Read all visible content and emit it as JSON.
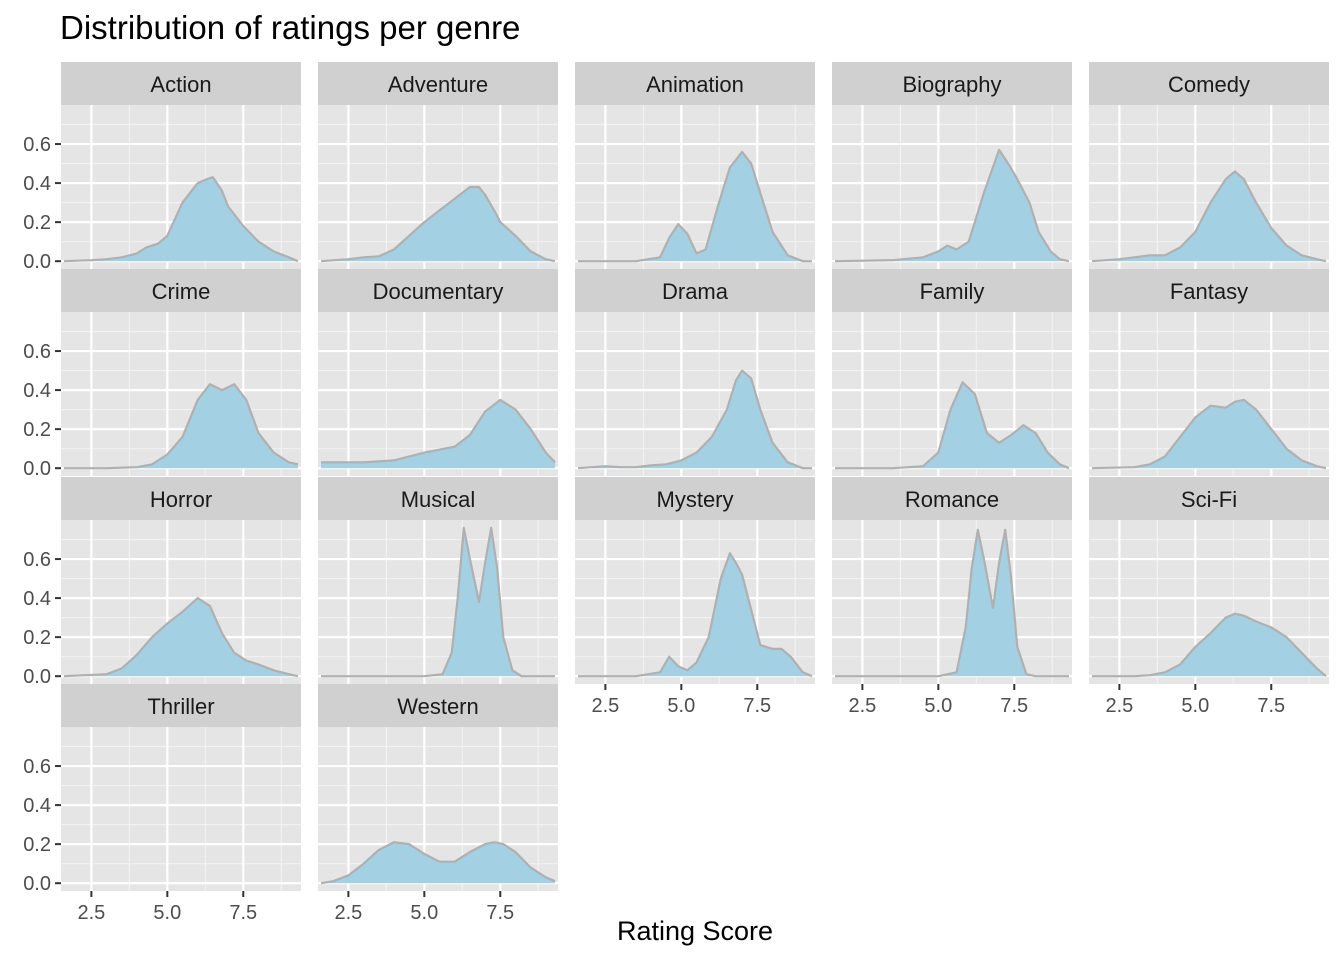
{
  "chart_data": {
    "type": "area",
    "title": "Distribution of ratings per genre",
    "xlabel": "Rating Score",
    "ylabel": "",
    "xlim": [
      1.5,
      9.4
    ],
    "ylim": [
      -0.04,
      0.8
    ],
    "x_ticks": [
      2.5,
      5.0,
      7.5
    ],
    "x_tick_labels": [
      "2.5",
      "5.0",
      "7.5"
    ],
    "y_ticks": [
      0.0,
      0.2,
      0.4,
      0.6
    ],
    "y_tick_labels": [
      "0.0",
      "0.2",
      "0.4",
      "0.6"
    ],
    "grid": true,
    "fill_color": "#a3d1e3",
    "line_color": "#b0b0b0",
    "panel_background": "#e5e5e5",
    "strip_background": "#d0d0d0",
    "facets": [
      {
        "name": "Action",
        "x": [
          1.6,
          2.5,
          3.0,
          3.5,
          4.0,
          4.3,
          4.7,
          5.0,
          5.5,
          6.0,
          6.3,
          6.5,
          6.8,
          7.0,
          7.5,
          8.0,
          8.5,
          9.0,
          9.3
        ],
        "y": [
          0.0,
          0.005,
          0.01,
          0.02,
          0.04,
          0.07,
          0.09,
          0.13,
          0.3,
          0.4,
          0.42,
          0.43,
          0.36,
          0.28,
          0.18,
          0.1,
          0.05,
          0.02,
          0.0
        ]
      },
      {
        "name": "Adventure",
        "x": [
          1.6,
          2.5,
          3.0,
          3.5,
          4.0,
          4.5,
          5.0,
          5.5,
          6.0,
          6.5,
          6.8,
          7.0,
          7.3,
          7.5,
          8.0,
          8.5,
          9.0,
          9.3
        ],
        "y": [
          0.0,
          0.01,
          0.02,
          0.025,
          0.06,
          0.13,
          0.2,
          0.26,
          0.32,
          0.38,
          0.38,
          0.34,
          0.26,
          0.2,
          0.13,
          0.05,
          0.01,
          0.0
        ]
      },
      {
        "name": "Animation",
        "x": [
          1.6,
          3.5,
          4.3,
          4.6,
          4.9,
          5.2,
          5.5,
          5.8,
          6.2,
          6.6,
          7.0,
          7.3,
          7.6,
          8.0,
          8.5,
          9.0,
          9.3
        ],
        "y": [
          0.0,
          0.0,
          0.02,
          0.12,
          0.19,
          0.14,
          0.04,
          0.06,
          0.28,
          0.48,
          0.56,
          0.5,
          0.35,
          0.15,
          0.03,
          0.0,
          0.0
        ]
      },
      {
        "name": "Biography",
        "x": [
          1.6,
          3.5,
          4.5,
          5.0,
          5.3,
          5.6,
          6.0,
          6.5,
          7.0,
          7.3,
          7.6,
          8.0,
          8.3,
          8.7,
          9.0,
          9.3
        ],
        "y": [
          0.0,
          0.005,
          0.02,
          0.05,
          0.08,
          0.06,
          0.1,
          0.35,
          0.57,
          0.5,
          0.42,
          0.3,
          0.15,
          0.05,
          0.01,
          0.0
        ]
      },
      {
        "name": "Comedy",
        "x": [
          1.6,
          2.5,
          3.0,
          3.5,
          4.0,
          4.5,
          5.0,
          5.5,
          6.0,
          6.3,
          6.6,
          7.0,
          7.5,
          8.0,
          8.5,
          9.0,
          9.3
        ],
        "y": [
          0.0,
          0.01,
          0.02,
          0.03,
          0.03,
          0.07,
          0.15,
          0.3,
          0.42,
          0.46,
          0.42,
          0.3,
          0.17,
          0.08,
          0.03,
          0.01,
          0.0
        ]
      },
      {
        "name": "Crime",
        "x": [
          1.6,
          3.0,
          4.0,
          4.5,
          5.0,
          5.5,
          6.0,
          6.4,
          6.8,
          7.2,
          7.6,
          8.0,
          8.5,
          9.0,
          9.3
        ],
        "y": [
          0.0,
          0.0,
          0.005,
          0.02,
          0.07,
          0.16,
          0.35,
          0.43,
          0.4,
          0.43,
          0.35,
          0.18,
          0.08,
          0.03,
          0.02
        ]
      },
      {
        "name": "Documentary",
        "x": [
          1.6,
          2.0,
          3.0,
          4.0,
          5.0,
          6.0,
          6.5,
          7.0,
          7.5,
          8.0,
          8.5,
          9.0,
          9.3
        ],
        "y": [
          0.03,
          0.03,
          0.03,
          0.04,
          0.08,
          0.11,
          0.17,
          0.29,
          0.35,
          0.3,
          0.2,
          0.08,
          0.03
        ]
      },
      {
        "name": "Drama",
        "x": [
          1.6,
          2.5,
          3.0,
          3.5,
          4.0,
          4.5,
          5.0,
          5.5,
          6.0,
          6.5,
          6.8,
          7.0,
          7.3,
          7.6,
          8.0,
          8.5,
          9.0,
          9.3
        ],
        "y": [
          0.0,
          0.01,
          0.005,
          0.005,
          0.015,
          0.02,
          0.04,
          0.08,
          0.16,
          0.3,
          0.45,
          0.5,
          0.46,
          0.3,
          0.13,
          0.03,
          0.0,
          0.0
        ]
      },
      {
        "name": "Family",
        "x": [
          1.6,
          3.5,
          4.5,
          5.0,
          5.4,
          5.8,
          6.2,
          6.6,
          7.0,
          7.4,
          7.8,
          8.2,
          8.6,
          9.0,
          9.3
        ],
        "y": [
          0.0,
          0.0,
          0.01,
          0.08,
          0.3,
          0.44,
          0.38,
          0.18,
          0.13,
          0.17,
          0.22,
          0.18,
          0.08,
          0.02,
          0.0
        ]
      },
      {
        "name": "Fantasy",
        "x": [
          1.6,
          3.0,
          3.5,
          4.0,
          4.5,
          5.0,
          5.5,
          6.0,
          6.3,
          6.6,
          7.0,
          7.5,
          8.0,
          8.5,
          9.0,
          9.3
        ],
        "y": [
          0.0,
          0.005,
          0.02,
          0.06,
          0.16,
          0.26,
          0.32,
          0.31,
          0.34,
          0.35,
          0.3,
          0.2,
          0.1,
          0.04,
          0.01,
          0.0
        ]
      },
      {
        "name": "Horror",
        "x": [
          1.6,
          3.0,
          3.5,
          4.0,
          4.5,
          5.0,
          5.5,
          6.0,
          6.4,
          6.8,
          7.2,
          7.6,
          8.0,
          8.5,
          9.0,
          9.3
        ],
        "y": [
          0.0,
          0.01,
          0.04,
          0.11,
          0.2,
          0.27,
          0.33,
          0.4,
          0.36,
          0.22,
          0.12,
          0.08,
          0.06,
          0.03,
          0.01,
          0.0
        ]
      },
      {
        "name": "Musical",
        "x": [
          1.6,
          5.0,
          5.6,
          5.9,
          6.1,
          6.3,
          6.5,
          6.8,
          7.0,
          7.2,
          7.4,
          7.6,
          7.9,
          8.2,
          9.0,
          9.3
        ],
        "y": [
          0.0,
          0.0,
          0.01,
          0.12,
          0.4,
          0.76,
          0.6,
          0.38,
          0.58,
          0.76,
          0.55,
          0.2,
          0.03,
          0.0,
          0.0,
          0.0
        ]
      },
      {
        "name": "Mystery",
        "x": [
          1.6,
          3.5,
          4.3,
          4.6,
          4.9,
          5.2,
          5.5,
          5.9,
          6.3,
          6.6,
          6.8,
          7.0,
          7.3,
          7.6,
          8.0,
          8.3,
          8.6,
          9.0,
          9.3
        ],
        "y": [
          0.0,
          0.0,
          0.02,
          0.1,
          0.05,
          0.03,
          0.07,
          0.2,
          0.5,
          0.63,
          0.58,
          0.52,
          0.34,
          0.16,
          0.14,
          0.14,
          0.1,
          0.02,
          0.0
        ]
      },
      {
        "name": "Romance",
        "x": [
          1.6,
          5.0,
          5.6,
          5.9,
          6.1,
          6.3,
          6.5,
          6.8,
          7.0,
          7.2,
          7.4,
          7.6,
          7.9,
          8.2,
          9.0,
          9.3
        ],
        "y": [
          0.0,
          0.0,
          0.02,
          0.25,
          0.55,
          0.75,
          0.6,
          0.35,
          0.58,
          0.75,
          0.5,
          0.15,
          0.01,
          0.0,
          0.0,
          0.0
        ]
      },
      {
        "name": "Sci-Fi",
        "x": [
          1.6,
          3.0,
          3.5,
          4.0,
          4.5,
          5.0,
          5.5,
          6.0,
          6.3,
          6.6,
          7.0,
          7.5,
          8.0,
          8.5,
          9.0,
          9.3
        ],
        "y": [
          0.0,
          0.0,
          0.005,
          0.02,
          0.06,
          0.15,
          0.22,
          0.3,
          0.32,
          0.31,
          0.28,
          0.25,
          0.2,
          0.12,
          0.04,
          0.0
        ]
      },
      {
        "name": "Thriller",
        "x": [],
        "y": []
      },
      {
        "name": "Western",
        "x": [
          1.6,
          2.0,
          2.5,
          3.0,
          3.5,
          4.0,
          4.5,
          5.0,
          5.5,
          6.0,
          6.5,
          7.0,
          7.3,
          7.6,
          8.0,
          8.5,
          9.0,
          9.3
        ],
        "y": [
          0.0,
          0.01,
          0.04,
          0.1,
          0.17,
          0.21,
          0.2,
          0.15,
          0.11,
          0.11,
          0.16,
          0.2,
          0.21,
          0.2,
          0.16,
          0.08,
          0.03,
          0.01
        ]
      }
    ]
  }
}
